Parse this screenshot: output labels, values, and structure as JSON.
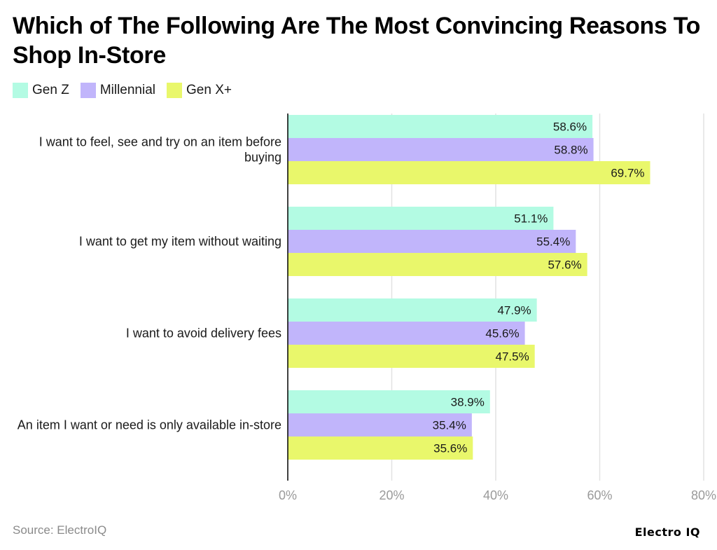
{
  "title": "Which of The Following Are The Most Convincing Reasons To Shop In-Store",
  "source": "Source: ElectroIQ",
  "brand": "Electro IQ",
  "chart_data": {
    "type": "bar",
    "orientation": "horizontal",
    "categories": [
      "I want to feel, see and try on an item before buying",
      "I want to get my item without waiting",
      "I want to avoid delivery fees",
      "An item I want or need is only available in-store"
    ],
    "series": [
      {
        "name": "Gen Z",
        "color": "#b3fbe3",
        "values": [
          58.6,
          51.1,
          47.9,
          38.9
        ]
      },
      {
        "name": "Millennial",
        "color": "#c1b5fb",
        "values": [
          58.8,
          55.4,
          45.6,
          35.4
        ]
      },
      {
        "name": "Gen X+",
        "color": "#e9f76b",
        "values": [
          69.7,
          57.6,
          47.5,
          35.6
        ]
      }
    ],
    "value_suffix": "%",
    "xlim": [
      0,
      80
    ],
    "xticks": [
      0,
      20,
      40,
      60,
      80
    ],
    "xtick_labels": [
      "0%",
      "20%",
      "40%",
      "60%",
      "80%"
    ],
    "grid": true,
    "legend_position": "top-left"
  }
}
